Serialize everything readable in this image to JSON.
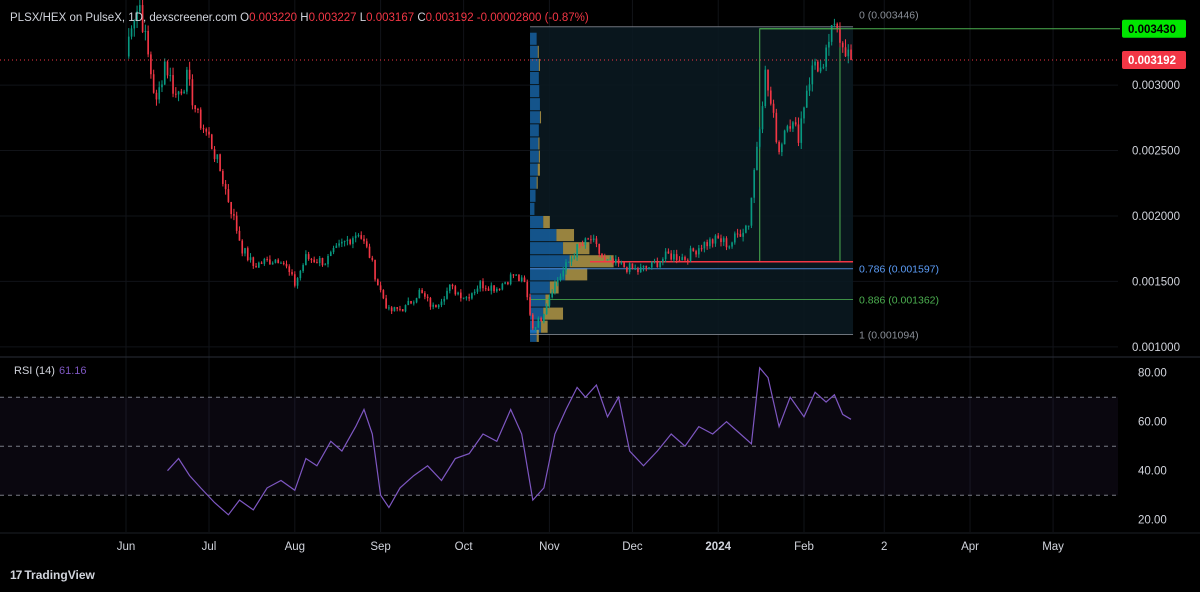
{
  "header": {
    "symbol": "PLSX/HEX on PulseX, 1D, dexscreener.com",
    "o_label": "O",
    "o_value": "0.003220",
    "h_label": "H",
    "h_value": "0.003227",
    "l_label": "L",
    "l_value": "0.003167",
    "c_label": "C",
    "c_value": "0.003192",
    "change": "-0.00002800 (-0.87%)"
  },
  "rsi_panel": {
    "label": "RSI (14)",
    "value": "61.16"
  },
  "footer": {
    "brand": "TradingView",
    "logo_glyph": "17"
  },
  "colors": {
    "up": "#089981",
    "down": "#f23645",
    "rsi_line": "#7e57c2",
    "fib_786": "#5b9cf6",
    "fib_886": "#4caf50",
    "green_level": "#4caf50",
    "volume_profile_blue": "#1e88e5",
    "volume_profile_gold": "#c8a84b"
  },
  "chart_data": [
    {
      "type": "candlestick",
      "title": "PLSX/HEX on PulseX, 1D, dexscreener.com",
      "x_ticks": [
        "Jun",
        "Jul",
        "Aug",
        "Sep",
        "Oct",
        "Nov",
        "Dec",
        "2024",
        "Feb",
        "2",
        "Apr",
        "May"
      ],
      "y_ticks": [
        "0.003000",
        "0.002500",
        "0.002000",
        "0.001500",
        "0.001000"
      ],
      "y_tick_values": [
        0.003,
        0.0025,
        0.002,
        0.0015,
        0.001
      ],
      "ylim": [
        0.00093,
        0.00365
      ],
      "last_price": 0.003192,
      "last_price_label": "0.003192",
      "green_level": 0.00343,
      "green_level_label": "0.003430",
      "fib_levels": [
        {
          "label": "0 (0.003446)",
          "value": 0.003446
        },
        {
          "label": "0.786 (0.001597)",
          "value": 0.001597
        },
        {
          "label": "0.886 (0.001362)",
          "value": 0.001362
        },
        {
          "label": "1 (0.001094)",
          "value": 0.001094
        }
      ],
      "red_level": 0.00165,
      "price_path": [
        [
          "2023-06-01",
          0.00322
        ],
        [
          "2023-06-03",
          0.0035
        ],
        [
          "2023-06-06",
          0.00361
        ],
        [
          "2023-06-09",
          0.00322
        ],
        [
          "2023-06-12",
          0.00285
        ],
        [
          "2023-06-15",
          0.00318
        ],
        [
          "2023-06-19",
          0.00292
        ],
        [
          "2023-06-23",
          0.00305
        ],
        [
          "2023-06-27",
          0.00275
        ],
        [
          "2023-07-01",
          0.0026
        ],
        [
          "2023-07-05",
          0.00235
        ],
        [
          "2023-07-09",
          0.00205
        ],
        [
          "2023-07-13",
          0.00175
        ],
        [
          "2023-07-17",
          0.00162
        ],
        [
          "2023-07-21",
          0.00165
        ],
        [
          "2023-07-27",
          0.00168
        ],
        [
          "2023-08-01",
          0.00148
        ],
        [
          "2023-08-05",
          0.00168
        ],
        [
          "2023-08-12",
          0.00165
        ],
        [
          "2023-08-18",
          0.00178
        ],
        [
          "2023-08-24",
          0.00188
        ],
        [
          "2023-08-28",
          0.0017
        ],
        [
          "2023-08-31",
          0.00148
        ],
        [
          "2023-09-04",
          0.00127
        ],
        [
          "2023-09-10",
          0.0013
        ],
        [
          "2023-09-15",
          0.00142
        ],
        [
          "2023-09-20",
          0.0013
        ],
        [
          "2023-09-26",
          0.00145
        ],
        [
          "2023-10-02",
          0.00138
        ],
        [
          "2023-10-07",
          0.00148
        ],
        [
          "2023-10-13",
          0.00145
        ],
        [
          "2023-10-19",
          0.00155
        ],
        [
          "2023-10-23",
          0.00148
        ],
        [
          "2023-10-26",
          0.00115
        ],
        [
          "2023-10-29",
          0.00122
        ],
        [
          "2023-11-02",
          0.00145
        ],
        [
          "2023-11-06",
          0.00158
        ],
        [
          "2023-11-11",
          0.00175
        ],
        [
          "2023-11-16",
          0.00182
        ],
        [
          "2023-11-21",
          0.00165
        ],
        [
          "2023-11-27",
          0.00162
        ],
        [
          "2023-12-03",
          0.00158
        ],
        [
          "2023-12-08",
          0.00162
        ],
        [
          "2023-12-14",
          0.0017
        ],
        [
          "2023-12-20",
          0.00168
        ],
        [
          "2023-12-26",
          0.00178
        ],
        [
          "2024-01-01",
          0.00182
        ],
        [
          "2024-01-05",
          0.00178
        ],
        [
          "2024-01-09",
          0.00188
        ],
        [
          "2024-01-12",
          0.00195
        ],
        [
          "2024-01-15",
          0.00255
        ],
        [
          "2024-01-18",
          0.00308
        ],
        [
          "2024-01-20",
          0.00285
        ],
        [
          "2024-01-23",
          0.0025
        ],
        [
          "2024-01-26",
          0.00275
        ],
        [
          "2024-01-30",
          0.00262
        ],
        [
          "2024-02-02",
          0.00298
        ],
        [
          "2024-02-05",
          0.00318
        ],
        [
          "2024-02-08",
          0.00308
        ],
        [
          "2024-02-10",
          0.00335
        ],
        [
          "2024-02-13",
          0.00345
        ],
        [
          "2024-02-16",
          0.00328
        ],
        [
          "2024-02-18",
          0.00319
        ]
      ],
      "volume_profile": {
        "range": [
          0.00105,
          0.00345
        ],
        "bins": [
          [
            0.00335,
            0.3,
            0
          ],
          [
            0.00325,
            0.35,
            0.05
          ],
          [
            0.00315,
            0.4,
            0.05
          ],
          [
            0.00305,
            0.4,
            0
          ],
          [
            0.00295,
            0.42,
            0
          ],
          [
            0.00285,
            0.45,
            0
          ],
          [
            0.00275,
            0.45,
            0.05
          ],
          [
            0.00265,
            0.4,
            0
          ],
          [
            0.00255,
            0.38,
            0.05
          ],
          [
            0.00245,
            0.4,
            0.05
          ],
          [
            0.00235,
            0.35,
            0.1
          ],
          [
            0.00225,
            0.3,
            0.05
          ],
          [
            0.00215,
            0.25,
            0
          ],
          [
            0.00205,
            0.2,
            0
          ],
          [
            0.00195,
            0.6,
            0.3
          ],
          [
            0.00185,
            1.2,
            0.8
          ],
          [
            0.00175,
            1.5,
            1.2
          ],
          [
            0.00165,
            1.8,
            2.0
          ],
          [
            0.00155,
            1.6,
            1.0
          ],
          [
            0.00145,
            0.9,
            0.4
          ],
          [
            0.00135,
            0.7,
            0.2
          ],
          [
            0.00125,
            0.6,
            0.9
          ],
          [
            0.00115,
            0.5,
            0.3
          ],
          [
            0.00108,
            0.3,
            0.1
          ]
        ]
      }
    },
    {
      "type": "line",
      "title": "RSI (14)",
      "last_value": 61.16,
      "y_ticks": [
        "80.00",
        "60.00",
        "40.00",
        "20.00"
      ],
      "y_tick_values": [
        80,
        60,
        40,
        20
      ],
      "ylim": [
        15,
        86
      ],
      "bands": [
        70,
        50,
        30
      ],
      "points": [
        [
          "2023-06-16",
          40
        ],
        [
          "2023-06-20",
          45
        ],
        [
          "2023-06-24",
          38
        ],
        [
          "2023-06-28",
          33
        ],
        [
          "2023-07-03",
          27
        ],
        [
          "2023-07-08",
          22
        ],
        [
          "2023-07-12",
          28
        ],
        [
          "2023-07-17",
          24
        ],
        [
          "2023-07-22",
          33
        ],
        [
          "2023-07-27",
          36
        ],
        [
          "2023-08-01",
          32
        ],
        [
          "2023-08-05",
          45
        ],
        [
          "2023-08-09",
          42
        ],
        [
          "2023-08-14",
          52
        ],
        [
          "2023-08-18",
          48
        ],
        [
          "2023-08-23",
          58
        ],
        [
          "2023-08-26",
          65
        ],
        [
          "2023-08-29",
          55
        ],
        [
          "2023-09-01",
          30
        ],
        [
          "2023-09-04",
          25
        ],
        [
          "2023-09-08",
          33
        ],
        [
          "2023-09-13",
          38
        ],
        [
          "2023-09-18",
          42
        ],
        [
          "2023-09-23",
          36
        ],
        [
          "2023-09-28",
          45
        ],
        [
          "2023-10-03",
          47
        ],
        [
          "2023-10-08",
          55
        ],
        [
          "2023-10-13",
          52
        ],
        [
          "2023-10-18",
          65
        ],
        [
          "2023-10-22",
          55
        ],
        [
          "2023-10-26",
          28
        ],
        [
          "2023-10-30",
          33
        ],
        [
          "2023-11-03",
          55
        ],
        [
          "2023-11-07",
          65
        ],
        [
          "2023-11-11",
          74
        ],
        [
          "2023-11-14",
          70
        ],
        [
          "2023-11-18",
          75
        ],
        [
          "2023-11-22",
          62
        ],
        [
          "2023-11-26",
          70
        ],
        [
          "2023-11-30",
          48
        ],
        [
          "2023-12-05",
          42
        ],
        [
          "2023-12-10",
          48
        ],
        [
          "2023-12-15",
          55
        ],
        [
          "2023-12-20",
          50
        ],
        [
          "2023-12-25",
          58
        ],
        [
          "2023-12-30",
          55
        ],
        [
          "2024-01-04",
          60
        ],
        [
          "2024-01-09",
          55
        ],
        [
          "2024-01-13",
          51
        ],
        [
          "2024-01-16",
          82
        ],
        [
          "2024-01-19",
          78
        ],
        [
          "2024-01-23",
          58
        ],
        [
          "2024-01-27",
          70
        ],
        [
          "2024-02-01",
          62
        ],
        [
          "2024-02-05",
          72
        ],
        [
          "2024-02-09",
          68
        ],
        [
          "2024-02-12",
          71
        ],
        [
          "2024-02-15",
          63
        ],
        [
          "2024-02-18",
          61
        ]
      ]
    }
  ]
}
